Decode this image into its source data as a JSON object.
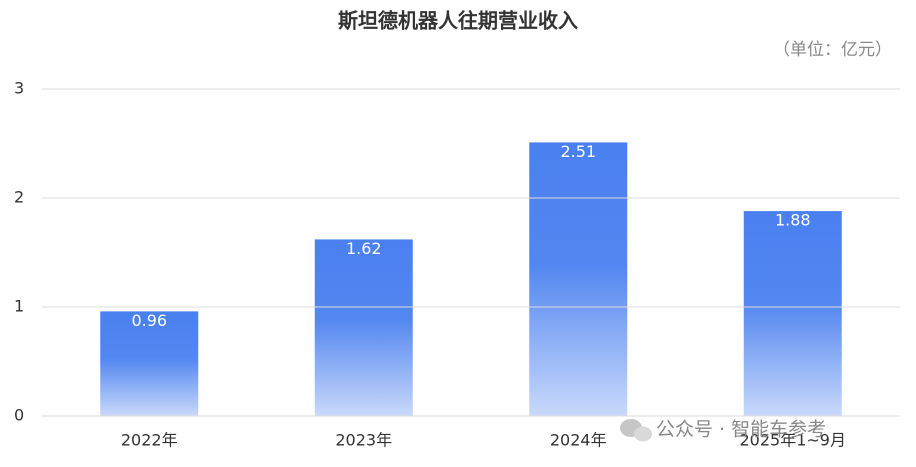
{
  "chart_data": {
    "type": "bar",
    "title": "斯坦德机器人往期营业收入",
    "unit": "（单位：亿元）",
    "categories": [
      "2022年",
      "2023年",
      "2024年",
      "2025年1~9月"
    ],
    "values": [
      0.96,
      1.62,
      2.51,
      1.88
    ],
    "color": "#4a80f0",
    "ylim": [
      0,
      3
    ],
    "yticks": [
      0,
      1,
      2,
      3
    ],
    "grid": true,
    "watermark": "公众号 · 智能车参考"
  }
}
